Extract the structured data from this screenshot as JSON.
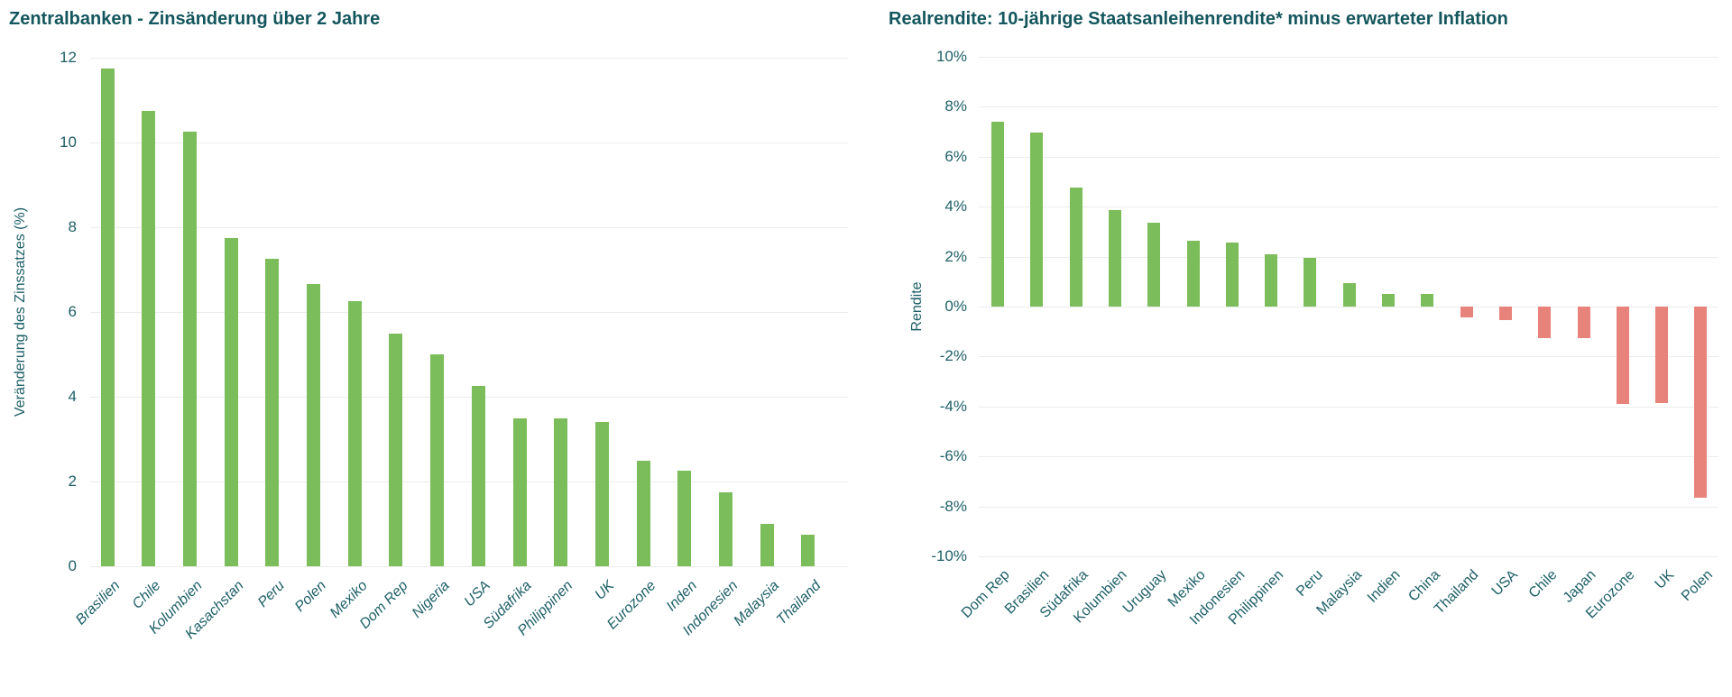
{
  "styles": {
    "title_color": "#14565d",
    "label_color": "#1d5f67",
    "grid_color": "#ececec",
    "green": "#7bbd5a",
    "red": "#e8837b"
  },
  "chart_data": [
    {
      "type": "bar",
      "title": "Zentralbanken - Zinsänderung über 2 Jahre",
      "xlabel": "",
      "ylabel": "Veränderung des Zinssatzes (%)",
      "ylim": [
        0,
        12
      ],
      "ytick_step": 2,
      "ytick_labels": [
        "0",
        "2",
        "4",
        "6",
        "8",
        "10",
        "12"
      ],
      "grid": true,
      "legend": "none",
      "bar_color": "#7bbd5a",
      "categories": [
        "Brasilien",
        "Chile",
        "Kolumbien",
        "Kasachstan",
        "Peru",
        "Polen",
        "Mexiko",
        "Dom Rep",
        "Nigeria",
        "USA",
        "Südafrika",
        "Philippinen",
        "UK",
        "Eurozone",
        "Inden",
        "Indonesien",
        "Malaysia",
        "Thailand"
      ],
      "values": [
        11.75,
        10.75,
        10.25,
        7.75,
        7.25,
        6.65,
        6.25,
        5.5,
        5.0,
        4.25,
        3.5,
        3.5,
        3.4,
        2.5,
        2.25,
        1.75,
        1.0,
        0.75
      ]
    },
    {
      "type": "bar",
      "title": "Realrendite: 10-jährige Staatsanleihenrendite* minus erwarteter Inflation",
      "xlabel": "",
      "ylabel": "Rendite",
      "ylim": [
        -10,
        10
      ],
      "ytick_step": 2,
      "ytick_labels": [
        "-10%",
        "-8%",
        "-6%",
        "-4%",
        "-2%",
        "0%",
        "2%",
        "4%",
        "6%",
        "8%",
        "10%"
      ],
      "grid": true,
      "legend": "none",
      "positive_color": "#7bbd5a",
      "negative_color": "#e8837b",
      "categories": [
        "Dom Rep",
        "Brasilien",
        "Südafrika",
        "Kolumbien",
        "Uruguay",
        "Mexiko",
        "Indonesien",
        "Philippinen",
        "Peru",
        "Malaysia",
        "Indien",
        "China",
        "Thailand",
        "USA",
        "Chile",
        "Japan",
        "Eurozone",
        "UK",
        "Polen"
      ],
      "values": [
        7.4,
        6.95,
        4.75,
        3.85,
        3.35,
        2.65,
        2.55,
        2.1,
        1.95,
        0.95,
        0.5,
        0.5,
        -0.45,
        -0.55,
        -1.25,
        -1.25,
        -3.9,
        -3.85,
        -7.65
      ]
    }
  ]
}
